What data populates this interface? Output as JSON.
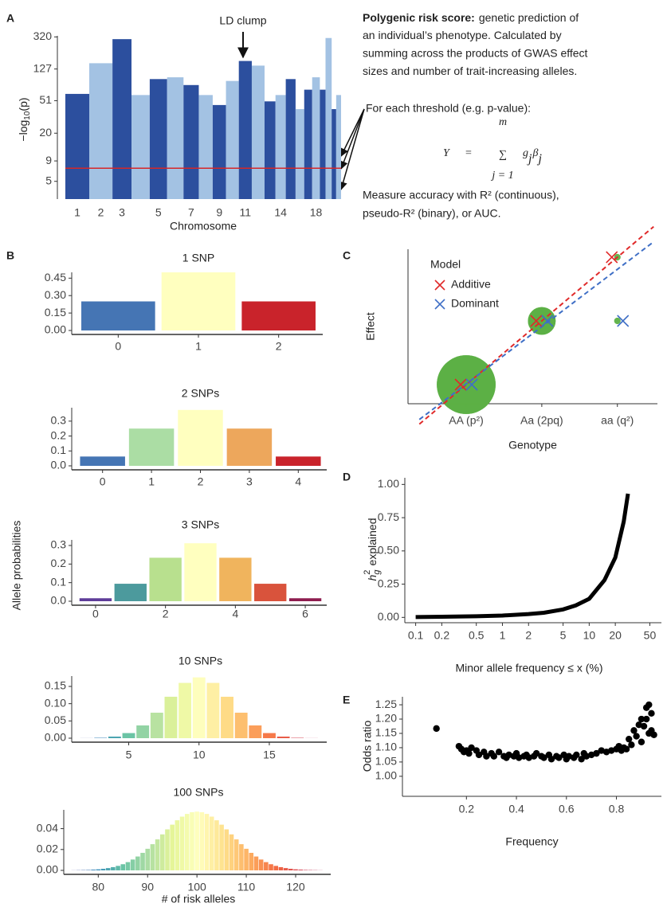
{
  "text_panel": {
    "title": "Polygenic risk score:",
    "lines": [
      "genetic prediction of",
      "an individual’s phenotype. Calculated by",
      "summing across the products of GWAS effect",
      "sizes and number of trait-increasing alleles."
    ],
    "threshold_note": "For each threshold (e.g. p-value):",
    "formula": {
      "lhs": "Y",
      "eq": "=",
      "sum": "∑",
      "upper": "m",
      "lower": "j = 1",
      "g": "g",
      "g_sub": "j",
      "beta": "β",
      "beta_sub": "j"
    },
    "accuracy": [
      "Measure accuracy with R² (continuous),",
      "pseudo-R² (binary), or AUC."
    ]
  },
  "chart_data": [
    {
      "type": "manhattan",
      "panel": "A",
      "categories": [
        "1",
        "2",
        "3",
        null,
        "5",
        null,
        "7",
        null,
        "9",
        null,
        "11",
        null,
        null,
        "14",
        null,
        null,
        null,
        "18",
        null,
        null,
        null,
        null
      ],
      "chromosome_lengths_mb": [
        249,
        242,
        198,
        190,
        181,
        171,
        159,
        145,
        138,
        134,
        135,
        133,
        114,
        107,
        102,
        90,
        83,
        80,
        59,
        64,
        47,
        51
      ],
      "values": [
        62,
        150,
        300,
        60,
        95,
        100,
        80,
        60,
        45,
        90,
        160,
        140,
        50,
        60,
        95,
        40,
        70,
        100,
        70,
        310,
        40,
        60
      ],
      "colors": [
        "#2c4f9e",
        "#a3c2e3"
      ],
      "ylog": true,
      "ylim": [
        3,
        330
      ],
      "yticks": [
        5,
        9,
        20,
        51,
        127,
        320
      ],
      "threshold": 7.3,
      "threshold_color": "#d62728",
      "annotation": "LD clump",
      "x_label": "Chromosome",
      "y_label": {
        "prefix": "−log",
        "sub": "10",
        "suffix": "(p)"
      }
    },
    {
      "type": "bar",
      "panel": "B",
      "title": "1 SNP",
      "categories": [
        "0",
        "1",
        "2"
      ],
      "values": [
        0.25,
        0.5,
        0.25
      ],
      "colors": [
        "#4575b4",
        "#ffffbf",
        "#c9232b"
      ],
      "ylim": [
        0,
        0.5
      ],
      "yticks": [
        {
          "value": 0,
          "label": "0.00"
        },
        0.15,
        {
          "value": 0.3,
          "label": "0.30"
        },
        0.45
      ],
      "y_label": "Allele probabilities"
    },
    {
      "type": "bar",
      "title": "2 SNPs",
      "categories": [
        "0",
        "1",
        "2",
        "3",
        "4"
      ],
      "values": [
        0.0625,
        0.25,
        0.375,
        0.25,
        0.0625
      ],
      "colors": [
        "#4575b4",
        "#abdda4",
        "#ffffbf",
        "#eda75c",
        "#c9232b"
      ],
      "ylim": [
        0,
        0.39
      ],
      "yticks": [
        {
          "value": 0,
          "label": "0.0"
        },
        0.1,
        0.2,
        0.3
      ]
    },
    {
      "type": "bar",
      "title": "3 SNPs",
      "categories": [
        "0",
        null,
        "2",
        null,
        "4",
        null,
        "6"
      ],
      "values": [
        0.016,
        0.094,
        0.234,
        0.312,
        0.234,
        0.094,
        0.016
      ],
      "colors": [
        "#5e3c99",
        "#4c9a9d",
        "#b8e08e",
        "#ffffbf",
        "#f0b45d",
        "#d9533c",
        "#8e1d4f"
      ],
      "ylim": [
        0,
        0.33
      ],
      "yticks": [
        {
          "value": 0,
          "label": "0.0"
        },
        0.1,
        0.2,
        0.3
      ]
    },
    {
      "type": "bar",
      "title": "10 SNPs",
      "x": [
        2,
        3,
        4,
        5,
        6,
        7,
        8,
        9,
        10,
        11,
        12,
        13,
        14,
        15,
        16,
        17,
        18
      ],
      "values": [
        0.0002,
        0.0011,
        0.0046,
        0.0148,
        0.037,
        0.0739,
        0.1201,
        0.1602,
        0.1762,
        0.1602,
        0.1201,
        0.0739,
        0.037,
        0.0148,
        0.0046,
        0.0011,
        0.0002
      ],
      "colormap": [
        "#5e4fa2",
        "#3288bd",
        "#66c2a5",
        "#abdda4",
        "#e6f598",
        "#ffffbf",
        "#fee08b",
        "#fdae61",
        "#f46d43",
        "#d53e4f",
        "#9e0142"
      ],
      "xlim": [
        1.4,
        18.8
      ],
      "xticks": [
        5,
        10,
        15
      ],
      "ylim": [
        0,
        0.18
      ],
      "yticks": [
        {
          "value": 0,
          "label": "0.00"
        },
        0.05,
        {
          "value": 0.1,
          "label": "0.10"
        },
        0.15
      ]
    },
    {
      "type": "bar",
      "title": "100 SNPs",
      "x": [
        75,
        76,
        77,
        78,
        79,
        80,
        81,
        82,
        83,
        84,
        85,
        86,
        87,
        88,
        89,
        90,
        91,
        92,
        93,
        94,
        95,
        96,
        97,
        98,
        99,
        100,
        101,
        102,
        103,
        104,
        105,
        106,
        107,
        108,
        109,
        110,
        111,
        112,
        113,
        114,
        115,
        116,
        117,
        118,
        119,
        120,
        121,
        122,
        123,
        124,
        125
      ],
      "values": [
        0.0001,
        0.0002,
        0.0003,
        0.0004,
        0.0007,
        0.001,
        0.0015,
        0.0022,
        0.0031,
        0.0043,
        0.0059,
        0.0079,
        0.0104,
        0.0133,
        0.0168,
        0.0207,
        0.0251,
        0.0297,
        0.0345,
        0.0393,
        0.0438,
        0.048,
        0.0515,
        0.0541,
        0.0557,
        0.0563,
        0.0557,
        0.0541,
        0.0515,
        0.048,
        0.0438,
        0.0393,
        0.0345,
        0.0297,
        0.0251,
        0.0207,
        0.0168,
        0.0133,
        0.0104,
        0.0079,
        0.0059,
        0.0043,
        0.0031,
        0.0022,
        0.0015,
        0.001,
        0.0007,
        0.0004,
        0.0003,
        0.0002,
        0.0001
      ],
      "colormap": [
        "#5e4fa2",
        "#3288bd",
        "#66c2a5",
        "#abdda4",
        "#e6f598",
        "#ffffbf",
        "#fee08b",
        "#fdae61",
        "#f46d43",
        "#d53e4f",
        "#9e0142"
      ],
      "xlim": [
        74.3,
        126.3
      ],
      "xticks": [
        80,
        90,
        100,
        110,
        120
      ],
      "ylim": [
        0,
        0.058
      ],
      "yticks": [
        {
          "value": 0,
          "label": "0.00"
        },
        0.02,
        0.04
      ],
      "x_label": "# of risk alleles"
    },
    {
      "type": "effect",
      "panel": "C",
      "categories": [
        "AA (p²)",
        "Aa (2pq)",
        "aa (q²)"
      ],
      "series": [
        {
          "name": "Additive",
          "color": "#e02a2a",
          "values": [
            0,
            1,
            2
          ],
          "fit": [
            0,
            1
          ]
        },
        {
          "name": "Dominant",
          "color": "#3f6fc6",
          "values": [
            0,
            1,
            1
          ],
          "fit": [
            0.01,
            0.9
          ]
        }
      ],
      "sizes": [
        0.81,
        0.18,
        0.01
      ],
      "size_color": "#5cb045",
      "xlim": [
        -0.77,
        2.53
      ],
      "ylim": [
        -0.3,
        2.125
      ],
      "legend_title": "Model",
      "x_label": "Genotype",
      "y_label": "Effect"
    },
    {
      "type": "line",
      "panel": "D",
      "x": [
        0.1,
        0.2,
        0.5,
        1,
        2,
        3,
        5,
        7,
        10,
        15,
        20,
        25,
        28
      ],
      "values": [
        0.003,
        0.005,
        0.009,
        0.014,
        0.025,
        0.035,
        0.06,
        0.09,
        0.14,
        0.28,
        0.45,
        0.72,
        0.93
      ],
      "color": "#000000",
      "xlog": true,
      "xlim": [
        0.075,
        68
      ],
      "xticks": [
        0.1,
        0.2,
        0.5,
        1,
        2,
        5,
        10,
        20,
        50
      ],
      "ylim": [
        -0.04,
        1.05
      ],
      "yticks": [
        {
          "value": 0,
          "label": "0.00"
        },
        0.25,
        {
          "value": 0.5,
          "label": "0.50"
        },
        0.75,
        {
          "value": 1,
          "label": "1.00"
        }
      ],
      "x_label": "Minor allele frequency ≤ x (%)",
      "y_label": {
        "symbol": "h",
        "sup": "2",
        "sub": "g",
        "text": "explained"
      }
    },
    {
      "type": "scatter",
      "panel": "E",
      "x": [
        0.08,
        0.17,
        0.18,
        0.19,
        0.2,
        0.21,
        0.22,
        0.24,
        0.25,
        0.27,
        0.28,
        0.3,
        0.31,
        0.33,
        0.35,
        0.36,
        0.37,
        0.39,
        0.4,
        0.41,
        0.43,
        0.44,
        0.45,
        0.47,
        0.48,
        0.5,
        0.51,
        0.53,
        0.54,
        0.56,
        0.57,
        0.59,
        0.6,
        0.61,
        0.63,
        0.64,
        0.66,
        0.67,
        0.68,
        0.7,
        0.72,
        0.74,
        0.76,
        0.78,
        0.8,
        0.81,
        0.82,
        0.83,
        0.84,
        0.85,
        0.86,
        0.87,
        0.88,
        0.89,
        0.9,
        0.9,
        0.91,
        0.92,
        0.92,
        0.93,
        0.93,
        0.94,
        0.94,
        0.95
      ],
      "values": [
        1.167,
        1.105,
        1.095,
        1.085,
        1.09,
        1.08,
        1.1,
        1.09,
        1.075,
        1.085,
        1.07,
        1.08,
        1.07,
        1.085,
        1.07,
        1.065,
        1.075,
        1.07,
        1.08,
        1.065,
        1.07,
        1.075,
        1.065,
        1.07,
        1.08,
        1.07,
        1.065,
        1.075,
        1.06,
        1.07,
        1.065,
        1.075,
        1.06,
        1.07,
        1.065,
        1.075,
        1.06,
        1.08,
        1.07,
        1.075,
        1.08,
        1.09,
        1.085,
        1.09,
        1.095,
        1.105,
        1.09,
        1.1,
        1.095,
        1.13,
        1.11,
        1.16,
        1.14,
        1.18,
        1.2,
        1.12,
        1.175,
        1.24,
        1.2,
        1.25,
        1.15,
        1.22,
        1.16,
        1.145
      ],
      "color": "#000000",
      "xlim": [
        -0.056,
        0.98
      ],
      "xticks": [
        0.2,
        0.4,
        0.6,
        0.8
      ],
      "ylim": [
        0.93,
        1.278
      ],
      "yticks": [
        {
          "value": 1,
          "label": "1.00"
        },
        1.05,
        {
          "value": 1.1,
          "label": "1.10"
        },
        1.15,
        {
          "value": 1.2,
          "label": "1.20"
        },
        1.25
      ],
      "x_label": "Frequency",
      "y_label": "Odds ratio"
    }
  ]
}
